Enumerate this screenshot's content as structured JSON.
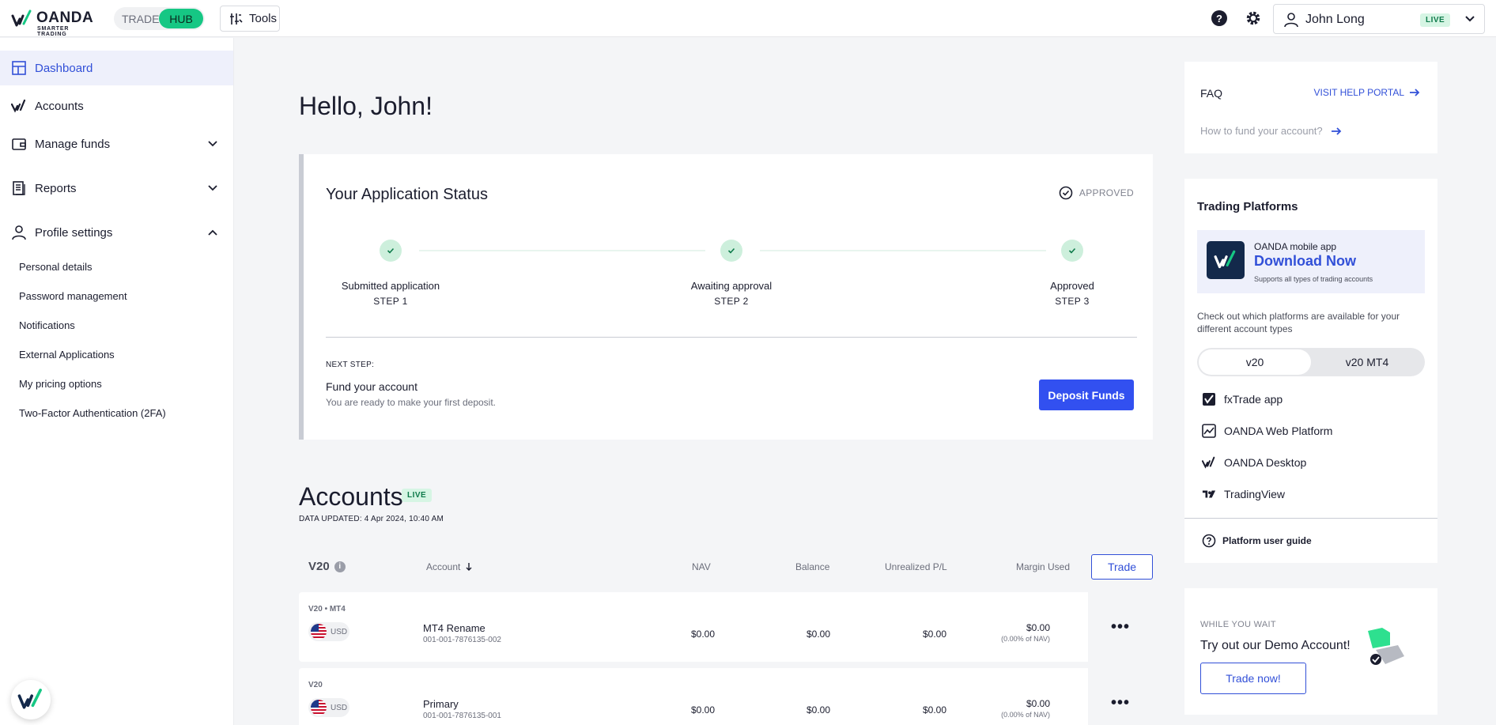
{
  "topbar": {
    "brand": "OANDA",
    "brand_tagline": "SMARTER TRADING",
    "toggle_trade": "TRADE",
    "toggle_hub": "HUB",
    "tools_label": "Tools",
    "help_glyph": "?",
    "user_name": "John Long",
    "live_badge": "LIVE"
  },
  "sidebar": {
    "dashboard": "Dashboard",
    "accounts": "Accounts",
    "manage_funds": "Manage funds",
    "reports": "Reports",
    "profile_settings": "Profile settings",
    "profile_items": [
      "Personal details",
      "Password management",
      "Notifications",
      "External Applications",
      "My pricing options",
      "Two-Factor Authentication (2FA)"
    ]
  },
  "main": {
    "greeting": "Hello, John!",
    "application": {
      "title": "Your Application Status",
      "status": "APPROVED",
      "steps": [
        {
          "name": "Submitted application",
          "label": "STEP 1"
        },
        {
          "name": "Awaiting approval",
          "label": "STEP 2"
        },
        {
          "name": "Approved",
          "label": "STEP 3"
        }
      ],
      "next_step_label": "NEXT STEP:",
      "next_step_title": "Fund your account",
      "next_step_desc": "You are ready to make your first deposit.",
      "deposit_button": "Deposit Funds"
    },
    "accounts": {
      "title": "Accounts",
      "badge": "LIVE",
      "data_updated": "DATA UPDATED: 4 Apr 2024, 10:40 AM",
      "columns": {
        "group": "V20",
        "account": "Account",
        "nav": "NAV",
        "balance": "Balance",
        "unrealized": "Unrealized P/L",
        "margin": "Margin Used"
      },
      "trade_button": "Trade",
      "rows": [
        {
          "platform": "V20 • MT4",
          "currency": "USD",
          "name": "MT4 Rename",
          "number": "001-001-7876135-002",
          "nav": "$0.00",
          "balance": "$0.00",
          "unrealized": "$0.00",
          "margin": "$0.00",
          "margin_pct": "(0.00% of NAV)",
          "more": "•••"
        },
        {
          "platform": "V20",
          "currency": "USD",
          "name": "Primary",
          "number": "001-001-7876135-001",
          "nav": "$0.00",
          "balance": "$0.00",
          "unrealized": "$0.00",
          "margin": "$0.00",
          "margin_pct": "(0.00% of NAV)",
          "more": "•••"
        }
      ]
    }
  },
  "right": {
    "faq": {
      "title": "FAQ",
      "help_link": "VISIT HELP PORTAL",
      "question": "How to fund your account?"
    },
    "platforms": {
      "title": "Trading Platforms",
      "mobile_app": "OANDA mobile app",
      "download": "Download Now",
      "supports": "Supports all types of trading accounts",
      "description": "Check out which platforms are available for your different account types",
      "tab_v20": "v20",
      "tab_mt4": "v20 MT4",
      "items": [
        "fxTrade app",
        "OANDA Web Platform",
        "OANDA Desktop",
        "TradingView"
      ],
      "guide": "Platform user guide"
    },
    "wait": {
      "small": "WHILE YOU WAIT",
      "big": "Try out our Demo Account!",
      "button": "Trade now!"
    }
  }
}
